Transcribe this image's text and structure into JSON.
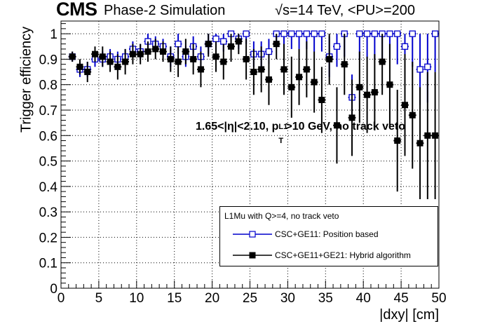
{
  "header": {
    "experiment": "CMS",
    "subtitle": "Phase-2 Simulation",
    "energy_label": "s=14 TeV, <PU>=200"
  },
  "annotation": {
    "text_prefix": "1.65<|η|<2.10, p",
    "text_sub": "T",
    "text_sup": "L1",
    "text_suffix": ">10 GeV, no track veto"
  },
  "legend": {
    "title": "L1Mu with Q>=4, no track veto",
    "placement": "bottom-right"
  },
  "colors": {
    "series1": "#0000cc",
    "series2": "#000000",
    "grid": "#000000"
  },
  "chart_data": {
    "type": "scatter",
    "xlabel": "|dxy| [cm]",
    "ylabel": "Trigger efficiency",
    "xlim": [
      0,
      50
    ],
    "ylim": [
      0,
      1.05
    ],
    "grid": true,
    "x_ticks": [
      "0",
      "5",
      "10",
      "15",
      "20",
      "25",
      "30",
      "35",
      "40",
      "45",
      "50"
    ],
    "y_ticks": [
      "0",
      "0.1",
      "0.2",
      "0.3",
      "0.4",
      "0.5",
      "0.6",
      "0.7",
      "0.8",
      "0.9",
      "1"
    ],
    "series": [
      {
        "name": "CSC+GE11: Position based",
        "marker": "open-square",
        "x": [
          1.5,
          2.5,
          3.5,
          4.5,
          5.5,
          6.5,
          7.5,
          8.5,
          9.5,
          10.5,
          11.5,
          12.5,
          13.5,
          14.5,
          15.5,
          16.5,
          17.5,
          18.5,
          19.5,
          20.5,
          21.5,
          22.5,
          23.5,
          24.5,
          25.5,
          26.5,
          27.5,
          28.5,
          29.5,
          30.5,
          31.5,
          32.5,
          33.5,
          34.5,
          35.5,
          36.5,
          37.5,
          38.5,
          39.5,
          40.5,
          41.5,
          42.5,
          43.5,
          44.5,
          45.5,
          46.5,
          47.5,
          48.5,
          49.5
        ],
        "y": [
          0.91,
          0.86,
          0.86,
          0.9,
          0.9,
          0.91,
          0.9,
          0.91,
          0.94,
          0.93,
          0.97,
          0.96,
          0.95,
          0.91,
          0.96,
          0.91,
          0.95,
          0.91,
          0.96,
          0.98,
          0.97,
          1.0,
          0.98,
          1.0,
          0.92,
          0.92,
          0.93,
          1.0,
          1.0,
          1.0,
          1.0,
          1.0,
          1.0,
          1.0,
          0.91,
          0.95,
          1.0,
          0.75,
          1.0,
          1.0,
          1.0,
          1.0,
          1.0,
          1.0,
          0.95,
          1.0,
          0.86,
          0.87,
          1.0
        ],
        "err": [
          0.02,
          0.03,
          0.03,
          0.03,
          0.03,
          0.03,
          0.03,
          0.03,
          0.03,
          0.03,
          0.03,
          0.03,
          0.03,
          0.04,
          0.04,
          0.04,
          0.04,
          0.04,
          0.04,
          0.04,
          0.04,
          0.04,
          0.04,
          0.04,
          0.05,
          0.05,
          0.05,
          0.05,
          0.06,
          0.06,
          0.06,
          0.06,
          0.07,
          0.07,
          0.08,
          0.08,
          0.09,
          0.09,
          0.1,
          0.1,
          0.1,
          0.1,
          0.1,
          0.12,
          0.13,
          0.13,
          0.14,
          0.14,
          0.15
        ]
      },
      {
        "name": "CSC+GE11+GE21: Hybrid algorithm",
        "marker": "filled-square",
        "x": [
          1.5,
          2.5,
          3.5,
          4.5,
          5.5,
          6.5,
          7.5,
          8.5,
          9.5,
          10.5,
          11.5,
          12.5,
          13.5,
          14.5,
          15.5,
          16.5,
          17.5,
          18.5,
          19.5,
          20.5,
          21.5,
          22.5,
          23.5,
          24.5,
          25.5,
          26.5,
          27.5,
          28.5,
          29.5,
          30.5,
          31.5,
          32.5,
          33.5,
          34.5,
          35.5,
          36.5,
          37.5,
          38.5,
          39.5,
          40.5,
          41.5,
          42.5,
          43.5,
          44.5,
          45.5,
          46.5,
          47.5,
          48.5,
          49.5
        ],
        "y": [
          0.91,
          0.87,
          0.85,
          0.92,
          0.91,
          0.89,
          0.87,
          0.89,
          0.92,
          0.92,
          0.93,
          0.94,
          0.93,
          0.9,
          0.89,
          0.93,
          0.9,
          0.86,
          0.96,
          0.91,
          0.89,
          0.95,
          0.97,
          0.9,
          0.85,
          0.86,
          0.82,
          0.96,
          0.86,
          0.79,
          0.83,
          0.86,
          0.81,
          0.74,
          0.9,
          0.64,
          0.88,
          0.67,
          0.79,
          0.76,
          0.77,
          0.89,
          0.8,
          0.58,
          0.72,
          0.68,
          0.57,
          0.6,
          0.6
        ],
        "err": [
          0.02,
          0.03,
          0.04,
          0.03,
          0.04,
          0.04,
          0.05,
          0.05,
          0.04,
          0.04,
          0.04,
          0.04,
          0.04,
          0.05,
          0.06,
          0.05,
          0.06,
          0.07,
          0.05,
          0.06,
          0.07,
          0.06,
          0.05,
          0.08,
          0.09,
          0.09,
          0.1,
          0.06,
          0.1,
          0.12,
          0.11,
          0.11,
          0.12,
          0.13,
          0.1,
          0.15,
          0.12,
          0.15,
          0.14,
          0.15,
          0.15,
          0.13,
          0.16,
          0.2,
          0.2,
          0.21,
          0.22,
          0.25,
          0.25
        ]
      }
    ]
  }
}
